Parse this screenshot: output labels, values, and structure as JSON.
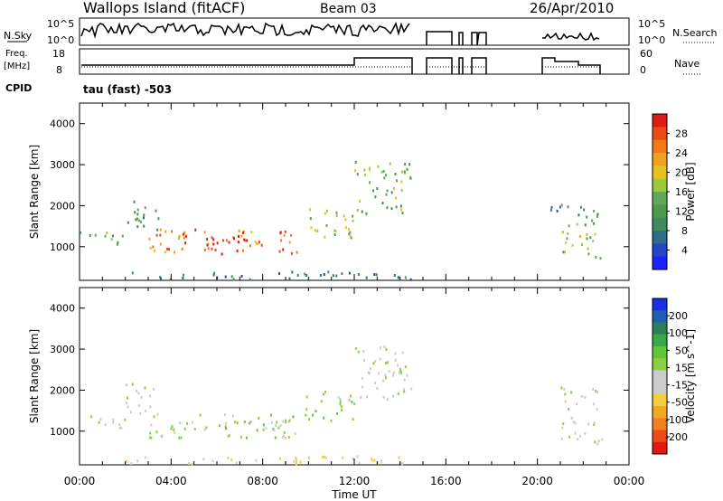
{
  "header": {
    "station": "Wallops Island (fitACF)",
    "beam": "Beam 03",
    "date": "26/Apr/2010"
  },
  "status_panels": {
    "nsky_label": "N.Sky",
    "nsky_ticks": [
      "10^5",
      "10^0"
    ],
    "nsearch_label": "N.Search",
    "nsearch_ticks": [
      "10^5",
      "10^0"
    ],
    "freq_label_1": "Freq.",
    "freq_label_2": "[MHz]",
    "freq_ticks": [
      "18",
      "8"
    ],
    "nave_label": "Nave",
    "nave_ticks": [
      "60",
      "0"
    ],
    "cpid_label": "CPID",
    "cpid_value": "tau (fast) -503"
  },
  "chart_data": [
    {
      "type": "heatmap",
      "panel": "power",
      "ylabel": "Slant Range [km]",
      "xlabel": "",
      "xlim_hours": [
        0,
        24
      ],
      "ylim_km": [
        180,
        4500
      ],
      "ytick_labels": [
        "1000",
        "2000",
        "3000",
        "4000"
      ],
      "ytick_values": [
        1000,
        2000,
        3000,
        4000
      ],
      "colorbar": {
        "label": "Power [dB]",
        "ticks": [
          "4",
          "8",
          "12",
          "16",
          "20",
          "24",
          "28"
        ],
        "range": [
          0,
          30
        ],
        "colors": [
          "#1a22ff",
          "#2446c4",
          "#2e6c8a",
          "#3f8a5e",
          "#4c9a4c",
          "#62a858",
          "#9ec83c",
          "#e8c020",
          "#f0a020",
          "#f07a18",
          "#ea4a14",
          "#e01a10"
        ]
      },
      "echo_regions": [
        {
          "t": [
            0.0,
            2.0
          ],
          "r": [
            1050,
            1400
          ],
          "value": 12
        },
        {
          "t": [
            2.0,
            3.5
          ],
          "r": [
            1400,
            2200
          ],
          "value": 10
        },
        {
          "t": [
            3.0,
            9.5
          ],
          "r": [
            850,
            1450
          ],
          "value": 24
        },
        {
          "t": [
            4.5,
            7.5
          ],
          "r": [
            950,
            1250
          ],
          "value": 28
        },
        {
          "t": [
            9.8,
            12.0
          ],
          "r": [
            1250,
            2000
          ],
          "value": 16
        },
        {
          "t": [
            12.0,
            14.5
          ],
          "r": [
            1800,
            3100
          ],
          "value": 14
        },
        {
          "t": [
            2.0,
            14.5
          ],
          "r": [
            220,
            420
          ],
          "value": 8
        },
        {
          "t": [
            21.0,
            22.8
          ],
          "r": [
            700,
            1400
          ],
          "value": 16
        },
        {
          "t": [
            21.0,
            22.6
          ],
          "r": [
            1500,
            2100
          ],
          "value": 12
        },
        {
          "t": [
            20.5,
            21.2
          ],
          "r": [
            1900,
            2300
          ],
          "value": 8
        }
      ]
    },
    {
      "type": "heatmap",
      "panel": "velocity",
      "ylabel": "Slant Range [km]",
      "xlabel": "Time UT",
      "xlim_hours": [
        0,
        24
      ],
      "xtick_labels": [
        "00:00",
        "04:00",
        "08:00",
        "12:00",
        "16:00",
        "20:00",
        "00:00"
      ],
      "xtick_values": [
        0,
        4,
        8,
        12,
        16,
        20,
        24
      ],
      "ylim_km": [
        180,
        4500
      ],
      "ytick_labels": [
        "1000",
        "2000",
        "3000",
        "4000"
      ],
      "ytick_values": [
        1000,
        2000,
        3000,
        4000
      ],
      "colorbar": {
        "label": "Velocity [m s^-1]",
        "ticks": [
          "200",
          "100",
          "50",
          "15",
          "-15",
          "-50",
          "-100",
          "-200"
        ],
        "range": [
          -250,
          250
        ],
        "colors": [
          "#e01a10",
          "#ee4a18",
          "#f28020",
          "#f2a820",
          "#f4d040",
          "#cccccc",
          "#cccccc",
          "#8ad040",
          "#5cc838",
          "#3aa84a",
          "#2c7f5a",
          "#2060b0",
          "#1a30e0"
        ]
      },
      "echo_regions": [
        {
          "t": [
            0.0,
            2.0
          ],
          "r": [
            1050,
            1400
          ],
          "value": 0
        },
        {
          "t": [
            2.0,
            3.5
          ],
          "r": [
            1400,
            2200
          ],
          "value": 0
        },
        {
          "t": [
            3.0,
            9.5
          ],
          "r": [
            850,
            1450
          ],
          "value": 40
        },
        {
          "t": [
            8.0,
            9.0
          ],
          "r": [
            850,
            1350
          ],
          "value": -40
        },
        {
          "t": [
            9.8,
            12.0
          ],
          "r": [
            1250,
            2000
          ],
          "value": 40
        },
        {
          "t": [
            12.0,
            14.5
          ],
          "r": [
            1800,
            3100
          ],
          "value": 0
        },
        {
          "t": [
            2.0,
            14.5
          ],
          "r": [
            220,
            420
          ],
          "value": -60
        },
        {
          "t": [
            21.0,
            22.8
          ],
          "r": [
            700,
            1400
          ],
          "value": 0
        },
        {
          "t": [
            21.0,
            22.6
          ],
          "r": [
            1500,
            2100
          ],
          "value": 0
        }
      ]
    }
  ]
}
